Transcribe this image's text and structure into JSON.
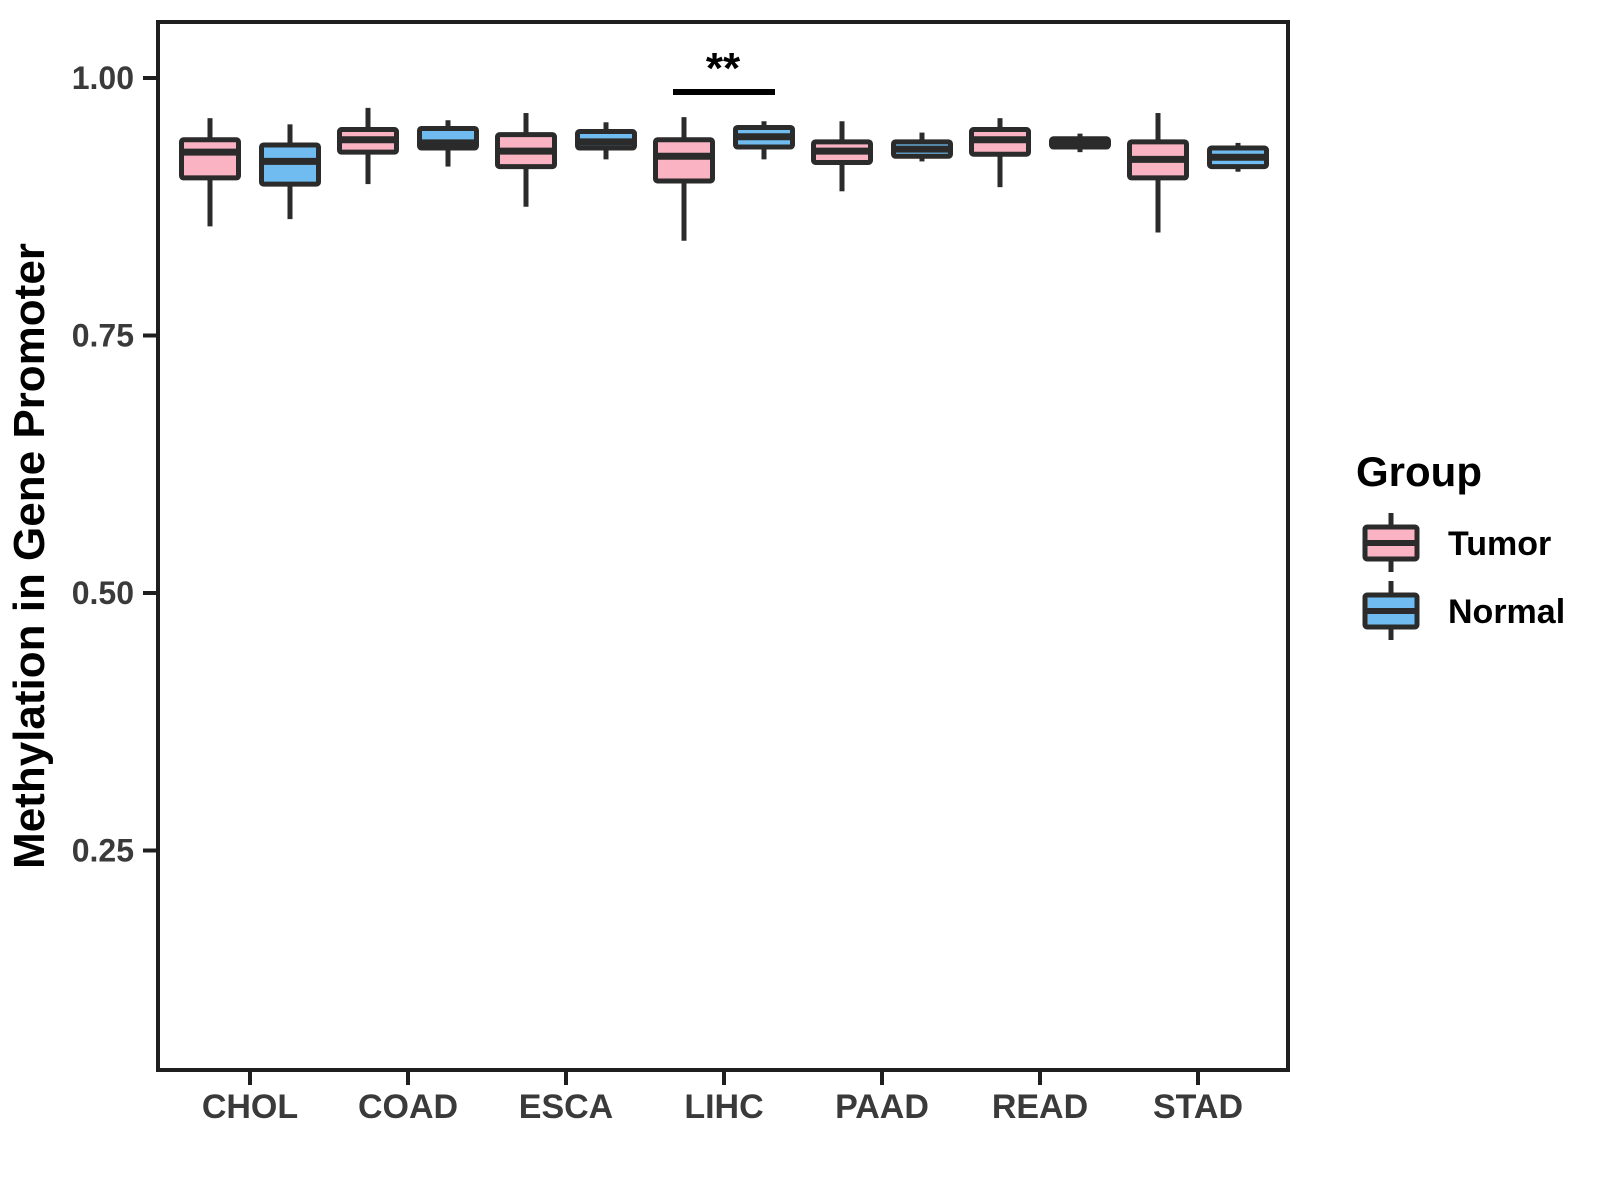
{
  "figure": {
    "background": "#ffffff",
    "panel_border_color": "#1f1f1f",
    "box_outline_color": "#2b2b2b",
    "tick_label_color": "#3a3a3a",
    "title_color": "#000000"
  },
  "chart_data": {
    "type": "boxplot",
    "title": "",
    "xlabel": "",
    "ylabel": "Methylation in Gene Promoter",
    "grid": false,
    "categories": [
      "CHOL",
      "COAD",
      "ESCA",
      "LIHC",
      "PAAD",
      "READ",
      "STAD"
    ],
    "y_ticks": [
      1.0,
      0.75,
      0.5,
      0.25
    ],
    "y_tick_labels": [
      "1.00",
      "0.75",
      "0.50",
      "0.25"
    ],
    "ylim": [
      0.04,
      1.05
    ],
    "legend": {
      "title": "Group",
      "position": "right",
      "entries": [
        {
          "label": "Tumor",
          "color": "#F9B3C3"
        },
        {
          "label": "Normal",
          "color": "#70BCF1"
        }
      ]
    },
    "series": [
      {
        "name": "Tumor",
        "color": "#F9B3C3",
        "boxes": [
          {
            "category": "CHOL",
            "min": 0.856,
            "q1": 0.903,
            "median": 0.928,
            "q3": 0.94,
            "max": 0.961
          },
          {
            "category": "COAD",
            "min": 0.897,
            "q1": 0.928,
            "median": 0.94,
            "q3": 0.95,
            "max": 0.971
          },
          {
            "category": "ESCA",
            "min": 0.875,
            "q1": 0.914,
            "median": 0.929,
            "q3": 0.945,
            "max": 0.966
          },
          {
            "category": "LIHC",
            "min": 0.842,
            "q1": 0.9,
            "median": 0.924,
            "q3": 0.94,
            "max": 0.962
          },
          {
            "category": "PAAD",
            "min": 0.89,
            "q1": 0.918,
            "median": 0.929,
            "q3": 0.938,
            "max": 0.958
          },
          {
            "category": "READ",
            "min": 0.894,
            "q1": 0.926,
            "median": 0.94,
            "q3": 0.95,
            "max": 0.961
          },
          {
            "category": "STAD",
            "min": 0.85,
            "q1": 0.903,
            "median": 0.921,
            "q3": 0.938,
            "max": 0.966
          }
        ]
      },
      {
        "name": "Normal",
        "color": "#70BCF1",
        "boxes": [
          {
            "category": "CHOL",
            "min": 0.863,
            "q1": 0.897,
            "median": 0.919,
            "q3": 0.935,
            "max": 0.955
          },
          {
            "category": "COAD",
            "min": 0.914,
            "q1": 0.932,
            "median": 0.937,
            "q3": 0.951,
            "max": 0.959
          },
          {
            "category": "ESCA",
            "min": 0.921,
            "q1": 0.932,
            "median": 0.938,
            "q3": 0.948,
            "max": 0.957
          },
          {
            "category": "LIHC",
            "min": 0.921,
            "q1": 0.933,
            "median": 0.943,
            "q3": 0.952,
            "max": 0.958
          },
          {
            "category": "PAAD",
            "min": 0.919,
            "q1": 0.924,
            "median": 0.931,
            "q3": 0.938,
            "max": 0.947
          },
          {
            "category": "READ",
            "min": 0.928,
            "q1": 0.933,
            "median": 0.937,
            "q3": 0.941,
            "max": 0.946
          },
          {
            "category": "STAD",
            "min": 0.909,
            "q1": 0.914,
            "median": 0.923,
            "q3": 0.932,
            "max": 0.937
          }
        ]
      }
    ],
    "annotations": [
      {
        "type": "significance",
        "category": "LIHC",
        "label": "**",
        "bar_y": 0.986
      }
    ]
  }
}
